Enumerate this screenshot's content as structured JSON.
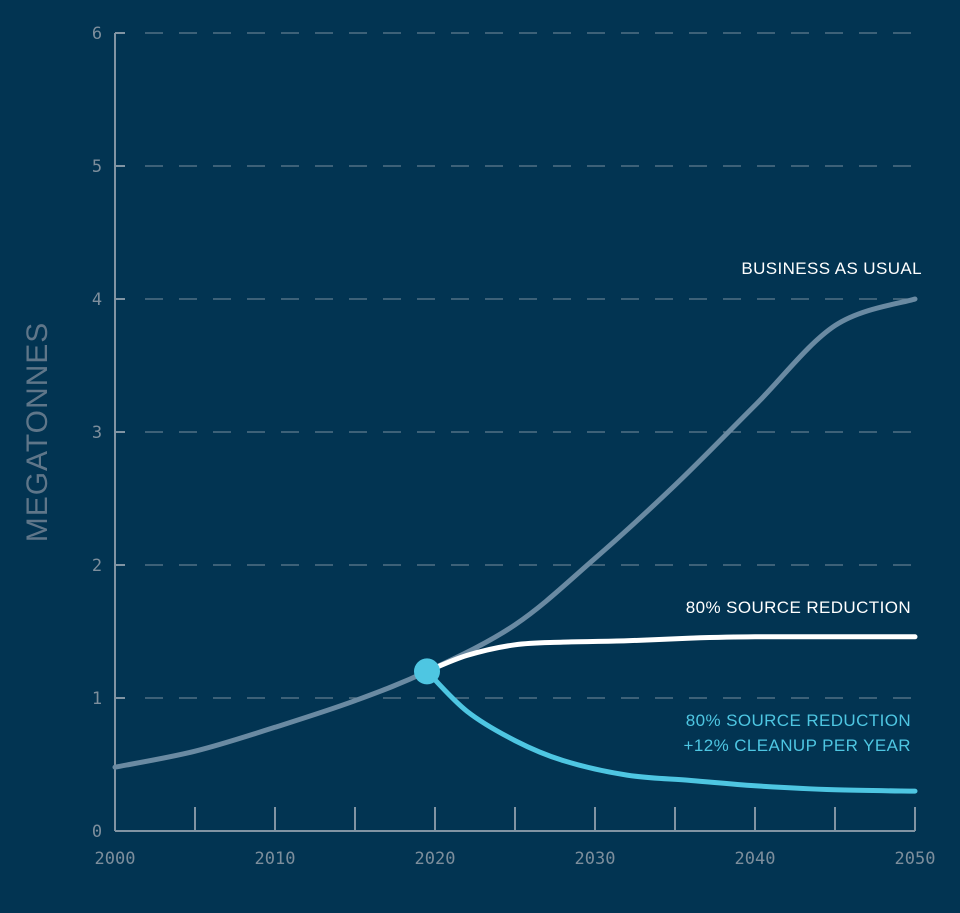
{
  "chart_data": {
    "type": "line",
    "xlabel": "",
    "ylabel": "MEGATONNES",
    "xlim": [
      2000,
      2050
    ],
    "ylim": [
      0,
      6
    ],
    "x_ticks": [
      2000,
      2010,
      2020,
      2030,
      2040,
      2050
    ],
    "y_ticks": [
      0,
      1,
      2,
      3,
      4,
      5,
      6
    ],
    "grid": "horizontal-dashed",
    "legend": "inline-labels",
    "series": [
      {
        "name": "BUSINESS AS USUAL",
        "color": "#6a8aa2",
        "label_lines": [
          "BUSINESS AS USUAL"
        ],
        "points": [
          [
            2000,
            0.48
          ],
          [
            2005,
            0.6
          ],
          [
            2010,
            0.78
          ],
          [
            2015,
            0.98
          ],
          [
            2019.5,
            1.2
          ],
          [
            2025,
            1.55
          ],
          [
            2030,
            2.05
          ],
          [
            2035,
            2.6
          ],
          [
            2040,
            3.2
          ],
          [
            2045,
            3.8
          ],
          [
            2050,
            4.0
          ]
        ]
      },
      {
        "name": "80% SOURCE REDUCTION",
        "color": "#ffffff",
        "label_lines": [
          "80% SOURCE REDUCTION"
        ],
        "points": [
          [
            2019.5,
            1.2
          ],
          [
            2022,
            1.32
          ],
          [
            2025,
            1.4
          ],
          [
            2028,
            1.42
          ],
          [
            2032,
            1.43
          ],
          [
            2036,
            1.45
          ],
          [
            2040,
            1.46
          ],
          [
            2045,
            1.46
          ],
          [
            2050,
            1.46
          ]
        ]
      },
      {
        "name": "80% SOURCE REDUCTION +12% CLEANUP PER YEAR",
        "color": "#4ec6e2",
        "label_lines": [
          "80% SOURCE REDUCTION",
          "+12% CLEANUP PER YEAR"
        ],
        "points": [
          [
            2019.5,
            1.2
          ],
          [
            2022,
            0.9
          ],
          [
            2025,
            0.68
          ],
          [
            2028,
            0.53
          ],
          [
            2032,
            0.42
          ],
          [
            2036,
            0.38
          ],
          [
            2040,
            0.34
          ],
          [
            2045,
            0.31
          ],
          [
            2050,
            0.3
          ]
        ]
      }
    ],
    "marker": {
      "x": 2019.5,
      "y": 1.2,
      "color": "#4ec6e2"
    }
  }
}
